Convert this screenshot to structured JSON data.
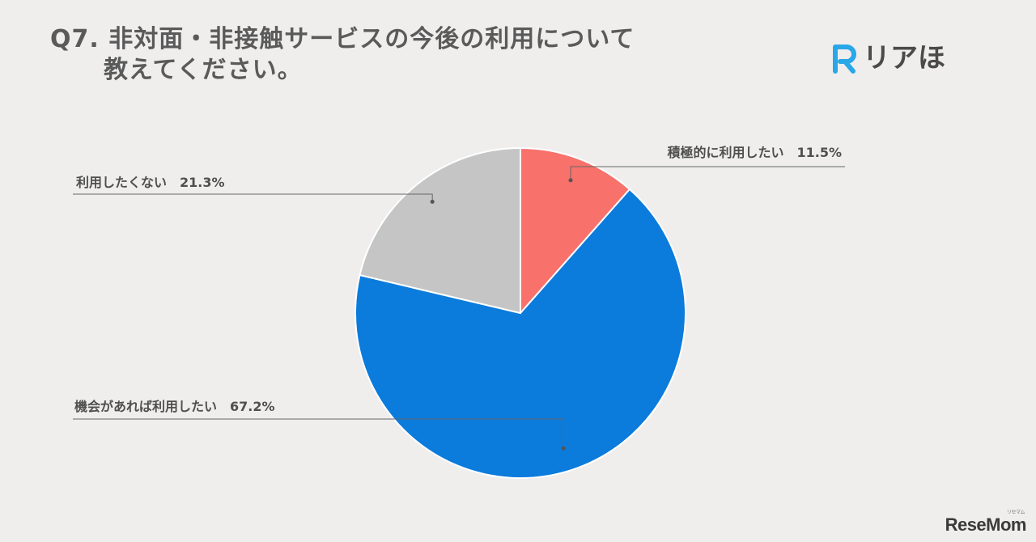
{
  "title": {
    "line1": "Q7. 非対面・非接触サービスの今後の利用について",
    "line2": "教えてください。"
  },
  "brand": {
    "text": "リアほ",
    "icon": "R-logo-icon",
    "icon_color": "#29a7e8"
  },
  "watermark": {
    "text": "ReseMom",
    "ruby": "リセマム"
  },
  "chart_data": {
    "type": "pie",
    "start": "12 o'clock",
    "direction": "clockwise",
    "slices": [
      {
        "label": "積極的に利用したい",
        "value": 11.5,
        "display": "11.5%",
        "color": "#f8716b"
      },
      {
        "label": "機会があれば利用したい",
        "value": 67.2,
        "display": "67.2%",
        "color": "#0b7bdc"
      },
      {
        "label": "利用したくない",
        "value": 21.3,
        "display": "21.3%",
        "color": "#c5c5c5"
      }
    ]
  }
}
